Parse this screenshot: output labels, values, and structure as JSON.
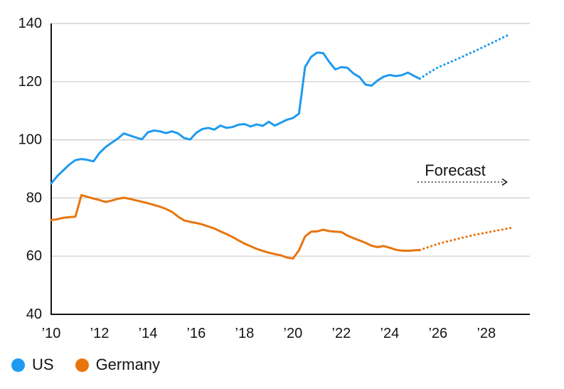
{
  "chart_data": {
    "type": "line",
    "title": "",
    "x_axis": {
      "tick_labels": [
        "’10",
        "’12",
        "’14",
        "’16",
        "’18",
        "’20",
        "’22",
        "’24",
        "’26",
        "’28"
      ],
      "tick_years": [
        2010,
        2012,
        2014,
        2016,
        2018,
        2020,
        2022,
        2024,
        2026,
        2028
      ],
      "range": [
        2010,
        2029.8
      ]
    },
    "y_axis": {
      "ticks": [
        40,
        60,
        80,
        100,
        120,
        140
      ],
      "range": [
        40,
        140
      ]
    },
    "grid": true,
    "legend_position": "bottom-left",
    "forecast_annotation": {
      "label": "Forecast"
    },
    "series": [
      {
        "name": "US",
        "color": "#1f9af0",
        "solid": {
          "x_start": 2010,
          "x_step": 0.25,
          "values": [
            85,
            87.5,
            89.5,
            91.5,
            93,
            93.4,
            93.1,
            92.6,
            95.5,
            97.5,
            99,
            100.4,
            102.2,
            101.5,
            100.8,
            100.2,
            102.6,
            103.2,
            102.9,
            102.3,
            102.9,
            102.2,
            100.6,
            100.1,
            102.4,
            103.7,
            104.1,
            103.5,
            104.9,
            104.1,
            104.4,
            105.2,
            105.4,
            104.6,
            105.3,
            104.8,
            106.2,
            104.9,
            105.9,
            106.9,
            107.5,
            109,
            125,
            128.5,
            130,
            129.8,
            126.8,
            124.2,
            125,
            124.8,
            122.8,
            121.6,
            119,
            118.6,
            120.4,
            121.7,
            122.3,
            121.9,
            122.2,
            123.1,
            122,
            121
          ]
        },
        "forecast": {
          "x_start": 2025.25,
          "x_step": 0.25,
          "values": [
            121,
            122.4,
            123.7,
            124.9,
            125.8,
            126.7,
            127.6,
            128.5,
            129.5,
            130.4,
            131.4,
            132.4,
            133.4,
            134.4,
            135.4,
            136.4
          ]
        }
      },
      {
        "name": "Germany",
        "color": "#e8750e",
        "solid": {
          "x_start": 2010,
          "x_step": 0.25,
          "values": [
            72.4,
            72.7,
            73.2,
            73.4,
            73.6,
            81,
            80.4,
            79.8,
            79.3,
            78.6,
            79.1,
            79.7,
            80.1,
            79.7,
            79.2,
            78.7,
            78.2,
            77.6,
            77,
            76.2,
            75.2,
            73.6,
            72.3,
            71.8,
            71.4,
            70.9,
            70.2,
            69.5,
            68.5,
            67.6,
            66.6,
            65.4,
            64.3,
            63.4,
            62.5,
            61.8,
            61.2,
            60.7,
            60.3,
            59.5,
            59.2,
            62,
            66.8,
            68.4,
            68.5,
            69.1,
            68.6,
            68.4,
            68.3,
            67.1,
            66.2,
            65.4,
            64.6,
            63.6,
            63.1,
            63.5,
            62.9,
            62.2,
            61.9,
            61.8,
            62,
            62.1
          ]
        },
        "forecast": {
          "x_start": 2025.25,
          "x_step": 0.25,
          "values": [
            62.1,
            62.8,
            63.5,
            64.2,
            64.8,
            65.3,
            65.8,
            66.3,
            66.8,
            67.3,
            67.7,
            68.1,
            68.5,
            68.9,
            69.3,
            69.7
          ]
        }
      }
    ]
  },
  "colors": {
    "axis": "#141414",
    "grid": "#cbcbcb",
    "text": "#141414",
    "background": "#ffffff",
    "us_line": "#1f9af0",
    "germany_line": "#e8750e"
  },
  "legend": {
    "items": [
      {
        "label": "US",
        "color": "#1f9af0"
      },
      {
        "label": "Germany",
        "color": "#e8750e"
      }
    ]
  }
}
